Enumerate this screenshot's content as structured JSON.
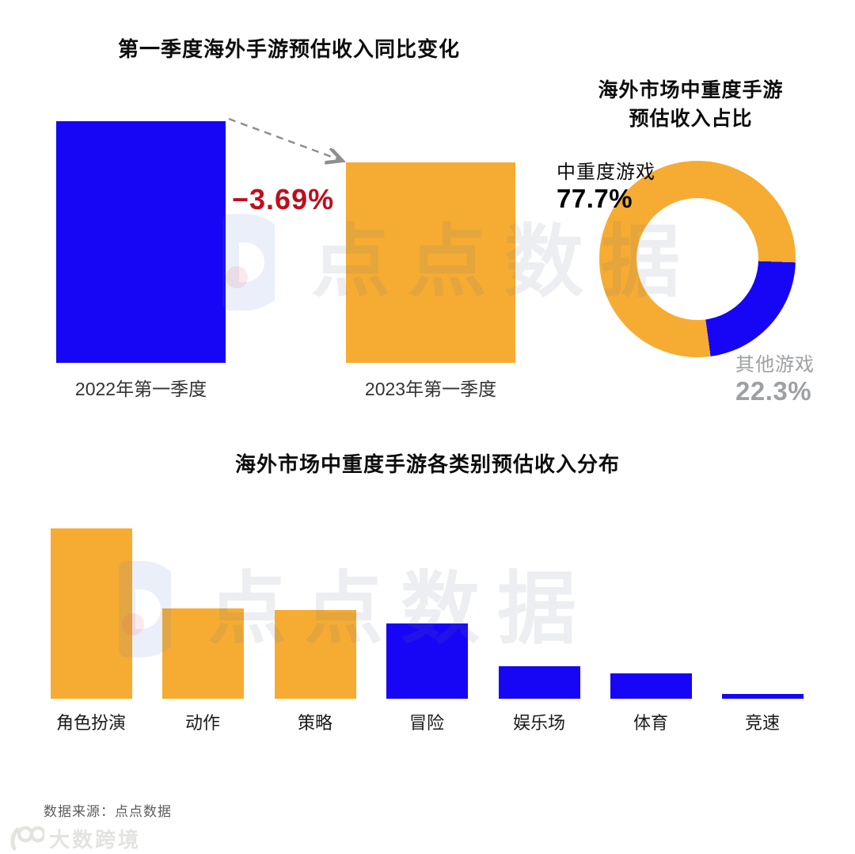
{
  "page": {
    "background": "#ffffff",
    "type": "infographic: overseas mobile game Q1 revenue report"
  },
  "colors": {
    "blue": "#1606f5",
    "orange": "#f6ac32",
    "red_negative": "#be0e1e",
    "gray_callout": "#9ea0a4",
    "arrow_gray": "#8f8f8f",
    "title_black": "#0d0d0d",
    "footer_gray": "#5c5c5c",
    "brand_gray": "#e3e3e0"
  },
  "chart_data": [
    {
      "type": "bar",
      "title": "第一季度海外手游预估收入同比变化",
      "categories": [
        "2022年第一季度",
        "2023年第一季度"
      ],
      "values": [
        100,
        83
      ],
      "unit": "relative bar height index (2022 Q1 = 100); no numeric axis shown",
      "annotation": "−3.69%",
      "annotation_meaning": "year-over-year change from 2022 Q1 to 2023 Q1",
      "colors": [
        "#1606f5",
        "#f6ac32"
      ],
      "legend": "none",
      "axes": "none (category labels under bars only)"
    },
    {
      "type": "pie",
      "donut": true,
      "title": "海外市场中重度手游预估收入占比",
      "title_lines": [
        "海外市场中重度手游",
        "预估收入占比"
      ],
      "slices": [
        {
          "label": "中重度游戏",
          "value": 77.7,
          "pct_label": "77.7%",
          "color": "#f6ac32"
        },
        {
          "label": "其他游戏",
          "value": 22.3,
          "pct_label": "22.3%",
          "color": "#1606f5"
        }
      ],
      "start_angle_deg_clockwise_from_top": 92,
      "legend": "callout labels beside donut"
    },
    {
      "type": "bar",
      "title": "海外市场中重度手游各类别预估收入分布",
      "categories": [
        "角色扮演",
        "动作",
        "策略",
        "冒险",
        "娱乐场",
        "体育",
        "竞速"
      ],
      "values": [
        100,
        53,
        52,
        44,
        19,
        15,
        2.8
      ],
      "unit": "relative bar height index (角色扮演 = 100); no numeric axis shown",
      "colors": [
        "#f6ac32",
        "#f6ac32",
        "#f6ac32",
        "#1606f5",
        "#1606f5",
        "#1606f5",
        "#1606f5"
      ],
      "legend": "none",
      "axes": "none (category labels under bars only)"
    }
  ],
  "watermark": {
    "text": "点点数据",
    "logo": "diandian-D-logo"
  },
  "footer": {
    "source": "数据来源：点点数据",
    "brand": "大数跨境",
    "brand_icon": "100"
  }
}
